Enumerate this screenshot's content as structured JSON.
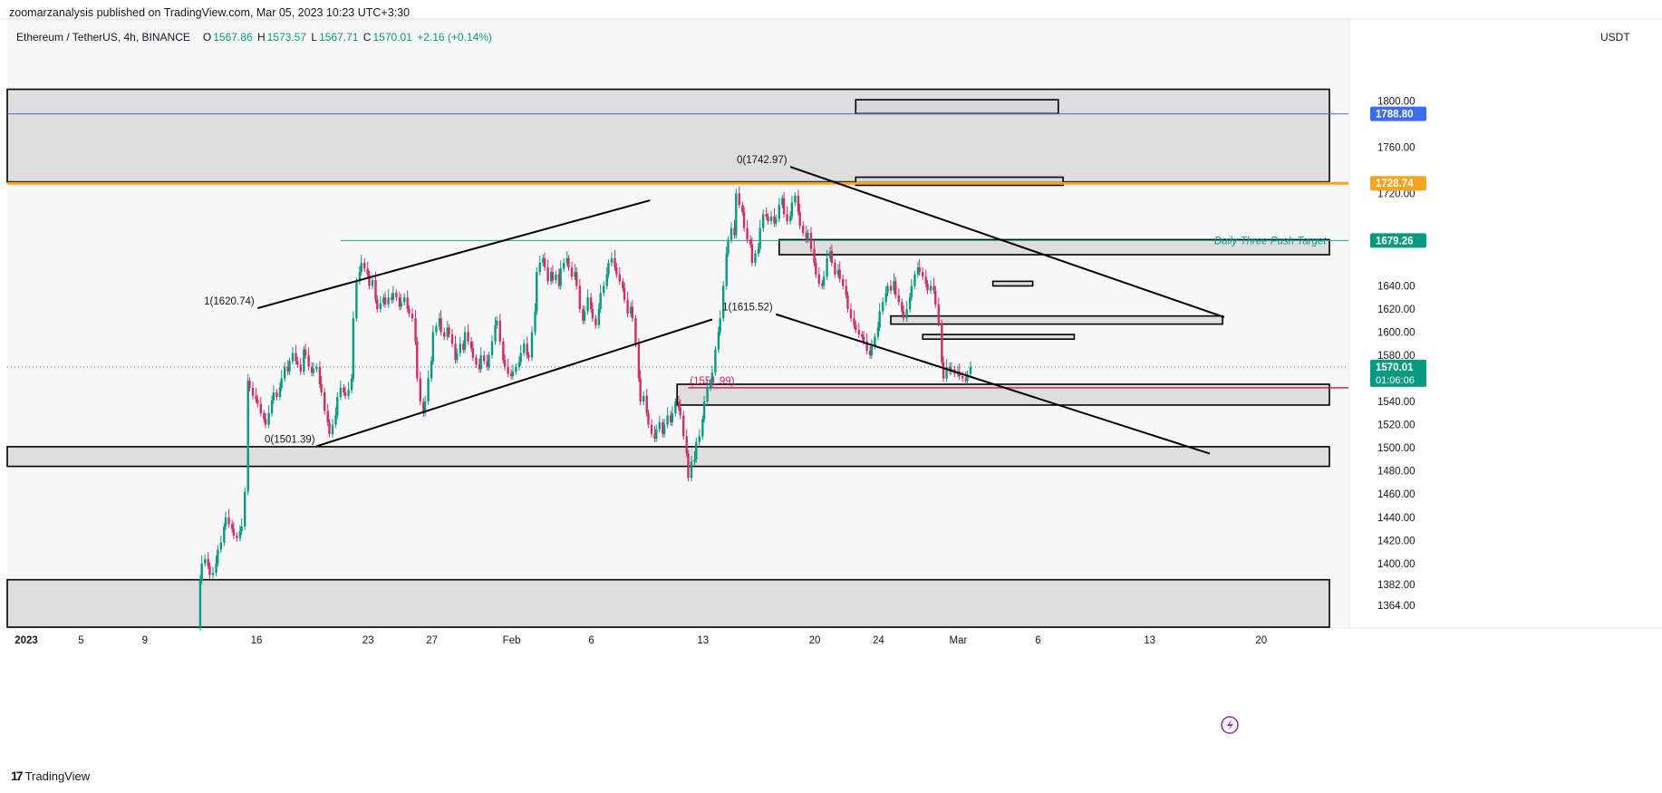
{
  "header": {
    "publisher_line": "zoomarzanalysis published on TradingView.com, Mar 05, 2023 10:23 UTC+3:30",
    "symbol": "Ethereum / TetherUS, 4h, BINANCE",
    "open_label": "O",
    "open": "1567.86",
    "high_label": "H",
    "high": "1573.57",
    "low_label": "L",
    "low": "1567.71",
    "close_label": "C",
    "close": "1570.01",
    "change": "+2.16 (+0.14%)",
    "currency": "USDT"
  },
  "footer": {
    "brand": "TradingView"
  },
  "colors": {
    "up": "#089981",
    "down": "#cc2e6a",
    "zone_fill": "#d6d6d6",
    "zone_border": "#000000",
    "orange_line": "#f7a521",
    "blue_line": "#3d6cf0",
    "teal_line": "#26a69a",
    "red_line": "#d61e5f",
    "price_label_bg": "#089981"
  },
  "chart_data": {
    "type": "candlestick",
    "symbol": "ETHUSDT",
    "timeframe": "4h",
    "ylim": [
      1345,
      1830
    ],
    "y_ticks": [
      1364,
      1382,
      1400,
      1420,
      1440,
      1460,
      1480,
      1500,
      1520,
      1540,
      1560,
      1580,
      1600,
      1620,
      1640,
      1660,
      1680,
      1700,
      1720,
      1740,
      1760,
      1780,
      1800
    ],
    "y_tick_labels_shown": [
      "1800.00",
      "1760.00",
      "1720.00",
      "1640.00",
      "1620.00",
      "1600.00",
      "1580.00",
      "1540.00",
      "1520.00",
      "1500.00",
      "1480.00",
      "1460.00",
      "1440.00",
      "1420.00",
      "1400.00",
      "1382.00",
      "1364.00"
    ],
    "x_ticks": [
      {
        "label": "2023",
        "day": 0
      },
      {
        "label": "5",
        "day": 4
      },
      {
        "label": "9",
        "day": 8
      },
      {
        "label": "16",
        "day": 15
      },
      {
        "label": "23",
        "day": 22
      },
      {
        "label": "27",
        "day": 26
      },
      {
        "label": "Feb",
        "day": 31
      },
      {
        "label": "6",
        "day": 36
      },
      {
        "label": "13",
        "day": 43
      },
      {
        "label": "20",
        "day": 50
      },
      {
        "label": "24",
        "day": 54
      },
      {
        "label": "Mar",
        "day": 59
      },
      {
        "label": "6",
        "day": 64
      },
      {
        "label": "13",
        "day": 71
      },
      {
        "label": "20",
        "day": 78
      }
    ],
    "price_labels": [
      {
        "value": 1788.8,
        "text": "1788.80",
        "color": "#3d6cf0"
      },
      {
        "value": 1728.74,
        "text": "1728.74",
        "color": "#f7a521"
      },
      {
        "value": 1679.26,
        "text": "1679.26",
        "color": "#089981"
      },
      {
        "value": 1570.01,
        "text": "1570.01",
        "sub": "01:06:06",
        "color": "#089981"
      }
    ],
    "hlines": [
      {
        "value": 1788.8,
        "color": "#3d6cf0",
        "width": 1
      },
      {
        "value": 1728.74,
        "color": "#f7a521",
        "width": 3
      },
      {
        "value": 1679.26,
        "color": "#26a69a",
        "width": 1,
        "from_day": 20.5
      },
      {
        "value": 1551.99,
        "color": "#d61e5f",
        "width": 1.5,
        "from_day": 42.3
      },
      {
        "value": 1570.01,
        "color": "#089981",
        "width": 1,
        "dotted": true
      }
    ],
    "zones": [
      {
        "from_day": -0.5,
        "to_day": 82.5,
        "top": 1810,
        "bottom": 1730
      },
      {
        "from_day": 52.8,
        "to_day": 65.5,
        "top": 1801,
        "bottom": 1789
      },
      {
        "from_day": 52.8,
        "to_day": 65.8,
        "top": 1734,
        "bottom": 1727
      },
      {
        "from_day": 48.0,
        "to_day": 82.5,
        "top": 1680,
        "bottom": 1667
      },
      {
        "from_day": 61.4,
        "to_day": 63.9,
        "top": 1644,
        "bottom": 1640
      },
      {
        "from_day": 55.0,
        "to_day": 75.8,
        "top": 1614,
        "bottom": 1607
      },
      {
        "from_day": 57.0,
        "to_day": 66.5,
        "top": 1598,
        "bottom": 1594
      },
      {
        "from_day": 41.6,
        "to_day": 82.5,
        "top": 1555,
        "bottom": 1537
      },
      {
        "from_day": -0.5,
        "to_day": 82.5,
        "top": 1501,
        "bottom": 1484
      },
      {
        "from_day": -0.5,
        "to_day": 82.5,
        "top": 1386,
        "bottom": 1345
      }
    ],
    "trendlines": [
      {
        "from": [
          15.3,
          1620.74
        ],
        "to": [
          39.9,
          1714
        ]
      },
      {
        "from": [
          19.0,
          1501.39
        ],
        "to": [
          43.8,
          1611
        ]
      },
      {
        "from": [
          48.7,
          1742.97
        ],
        "to": [
          75.9,
          1613
        ]
      },
      {
        "from": [
          47.8,
          1615.52
        ],
        "to": [
          75.0,
          1495
        ]
      }
    ],
    "annotations": [
      {
        "text": "1(1620.74)",
        "day": 15.1,
        "value": 1620.74,
        "anchor": "end",
        "color": "#131722"
      },
      {
        "text": "0(1501.39)",
        "day": 18.9,
        "value": 1501.39,
        "anchor": "end",
        "color": "#131722"
      },
      {
        "text": "0(1742.97)",
        "day": 48.5,
        "value": 1742.97,
        "anchor": "end",
        "color": "#131722"
      },
      {
        "text": "1(1615.52)",
        "day": 47.6,
        "value": 1615.52,
        "anchor": "end",
        "color": "#131722"
      },
      {
        "text": "(1551.99)",
        "day": 45.2,
        "value": 1551.99,
        "anchor": "end",
        "color": "#d61e5f"
      },
      {
        "text": "Daily Three Push Target",
        "day": 82.3,
        "value": 1679.26,
        "anchor": "end",
        "color": "#089981",
        "italic": true
      }
    ],
    "closes": [
      [
        11.5,
        1345
      ],
      [
        11.7,
        1385
      ],
      [
        11.8,
        1400
      ],
      [
        12.0,
        1404
      ],
      [
        12.2,
        1398
      ],
      [
        12.3,
        1390
      ],
      [
        12.5,
        1392
      ],
      [
        12.7,
        1400
      ],
      [
        12.8,
        1412
      ],
      [
        13.0,
        1418
      ],
      [
        13.2,
        1432
      ],
      [
        13.3,
        1440
      ],
      [
        13.5,
        1434
      ],
      [
        13.7,
        1430
      ],
      [
        13.8,
        1424
      ],
      [
        14.0,
        1422
      ],
      [
        14.2,
        1428
      ],
      [
        14.3,
        1432
      ],
      [
        14.5,
        1462
      ],
      [
        14.7,
        1558
      ],
      [
        14.8,
        1552
      ],
      [
        15.0,
        1545
      ],
      [
        15.2,
        1542
      ],
      [
        15.3,
        1538
      ],
      [
        15.5,
        1530
      ],
      [
        15.7,
        1525
      ],
      [
        15.8,
        1520
      ],
      [
        16.0,
        1530
      ],
      [
        16.2,
        1541
      ],
      [
        16.3,
        1548
      ],
      [
        16.5,
        1544
      ],
      [
        16.7,
        1552
      ],
      [
        16.8,
        1560
      ],
      [
        17.0,
        1570
      ],
      [
        17.2,
        1566
      ],
      [
        17.3,
        1575
      ],
      [
        17.5,
        1582
      ],
      [
        17.7,
        1575
      ],
      [
        17.8,
        1572
      ],
      [
        18.0,
        1566
      ],
      [
        18.2,
        1585
      ],
      [
        18.3,
        1580
      ],
      [
        18.5,
        1570
      ],
      [
        18.7,
        1565
      ],
      [
        18.8,
        1568
      ],
      [
        19.0,
        1570
      ],
      [
        19.2,
        1555
      ],
      [
        19.3,
        1548
      ],
      [
        19.5,
        1532
      ],
      [
        19.7,
        1522
      ],
      [
        19.8,
        1512
      ],
      [
        20.0,
        1520
      ],
      [
        20.2,
        1528
      ],
      [
        20.3,
        1544
      ],
      [
        20.5,
        1552
      ],
      [
        20.7,
        1548
      ],
      [
        20.8,
        1545
      ],
      [
        21.0,
        1550
      ],
      [
        21.2,
        1560
      ],
      [
        21.3,
        1612
      ],
      [
        21.5,
        1644
      ],
      [
        21.7,
        1652
      ],
      [
        21.8,
        1660
      ],
      [
        22.0,
        1655
      ],
      [
        22.2,
        1650
      ],
      [
        22.3,
        1640
      ],
      [
        22.5,
        1645
      ],
      [
        22.7,
        1628
      ],
      [
        22.8,
        1620
      ],
      [
        23.0,
        1625
      ],
      [
        23.2,
        1630
      ],
      [
        23.3,
        1624
      ],
      [
        23.5,
        1630
      ],
      [
        23.7,
        1628
      ],
      [
        23.8,
        1634
      ],
      [
        24.0,
        1630
      ],
      [
        24.2,
        1622
      ],
      [
        24.3,
        1626
      ],
      [
        24.5,
        1630
      ],
      [
        24.7,
        1620
      ],
      [
        24.8,
        1616
      ],
      [
        25.0,
        1612
      ],
      [
        25.2,
        1592
      ],
      [
        25.3,
        1560
      ],
      [
        25.5,
        1540
      ],
      [
        25.7,
        1530
      ],
      [
        25.8,
        1540
      ],
      [
        26.0,
        1560
      ],
      [
        26.2,
        1575
      ],
      [
        26.3,
        1600
      ],
      [
        26.5,
        1605
      ],
      [
        26.7,
        1612
      ],
      [
        26.8,
        1600
      ],
      [
        27.0,
        1596
      ],
      [
        27.2,
        1604
      ],
      [
        27.3,
        1598
      ],
      [
        27.5,
        1590
      ],
      [
        27.7,
        1576
      ],
      [
        27.8,
        1582
      ],
      [
        28.0,
        1590
      ],
      [
        28.2,
        1585
      ],
      [
        28.3,
        1600
      ],
      [
        28.5,
        1592
      ],
      [
        28.7,
        1586
      ],
      [
        28.8,
        1578
      ],
      [
        29.0,
        1572
      ],
      [
        29.2,
        1568
      ],
      [
        29.3,
        1580
      ],
      [
        29.5,
        1575
      ],
      [
        29.7,
        1570
      ],
      [
        29.8,
        1580
      ],
      [
        30.0,
        1592
      ],
      [
        30.2,
        1606
      ],
      [
        30.3,
        1610
      ],
      [
        30.5,
        1592
      ],
      [
        30.7,
        1576
      ],
      [
        30.8,
        1570
      ],
      [
        31.0,
        1564
      ],
      [
        31.2,
        1562
      ],
      [
        31.3,
        1566
      ],
      [
        31.5,
        1570
      ],
      [
        31.7,
        1574
      ],
      [
        31.8,
        1582
      ],
      [
        32.0,
        1590
      ],
      [
        32.2,
        1580
      ],
      [
        32.3,
        1578
      ],
      [
        32.5,
        1600
      ],
      [
        32.7,
        1618
      ],
      [
        32.8,
        1652
      ],
      [
        33.0,
        1660
      ],
      [
        33.2,
        1664
      ],
      [
        33.3,
        1656
      ],
      [
        33.5,
        1644
      ],
      [
        33.7,
        1652
      ],
      [
        33.8,
        1645
      ],
      [
        34.0,
        1650
      ],
      [
        34.2,
        1640
      ],
      [
        34.3,
        1655
      ],
      [
        34.5,
        1660
      ],
      [
        34.7,
        1664
      ],
      [
        34.8,
        1656
      ],
      [
        35.0,
        1648
      ],
      [
        35.2,
        1652
      ],
      [
        35.3,
        1640
      ],
      [
        35.5,
        1620
      ],
      [
        35.7,
        1610
      ],
      [
        35.8,
        1618
      ],
      [
        36.0,
        1630
      ],
      [
        36.2,
        1620
      ],
      [
        36.3,
        1612
      ],
      [
        36.5,
        1606
      ],
      [
        36.7,
        1620
      ],
      [
        36.8,
        1634
      ],
      [
        37.0,
        1640
      ],
      [
        37.2,
        1650
      ],
      [
        37.3,
        1660
      ],
      [
        37.5,
        1664
      ],
      [
        37.7,
        1656
      ],
      [
        37.8,
        1650
      ],
      [
        38.0,
        1644
      ],
      [
        38.2,
        1638
      ],
      [
        38.3,
        1628
      ],
      [
        38.5,
        1616
      ],
      [
        38.7,
        1622
      ],
      [
        38.8,
        1612
      ],
      [
        39.0,
        1590
      ],
      [
        39.2,
        1560
      ],
      [
        39.3,
        1540
      ],
      [
        39.5,
        1545
      ],
      [
        39.7,
        1530
      ],
      [
        39.8,
        1520
      ],
      [
        40.0,
        1512
      ],
      [
        40.2,
        1508
      ],
      [
        40.3,
        1516
      ],
      [
        40.5,
        1522
      ],
      [
        40.7,
        1512
      ],
      [
        40.8,
        1520
      ],
      [
        41.0,
        1528
      ],
      [
        41.2,
        1522
      ],
      [
        41.3,
        1530
      ],
      [
        41.5,
        1540
      ],
      [
        41.7,
        1535
      ],
      [
        41.8,
        1528
      ],
      [
        42.0,
        1510
      ],
      [
        42.2,
        1495
      ],
      [
        42.3,
        1474
      ],
      [
        42.5,
        1488
      ],
      [
        42.7,
        1490
      ],
      [
        42.8,
        1505
      ],
      [
        43.0,
        1510
      ],
      [
        43.2,
        1525
      ],
      [
        43.3,
        1540
      ],
      [
        43.5,
        1552
      ],
      [
        43.7,
        1556
      ],
      [
        43.8,
        1565
      ],
      [
        44.0,
        1585
      ],
      [
        44.2,
        1600
      ],
      [
        44.3,
        1612
      ],
      [
        44.5,
        1640
      ],
      [
        44.7,
        1668
      ],
      [
        44.8,
        1680
      ],
      [
        45.0,
        1690
      ],
      [
        45.2,
        1684
      ],
      [
        45.3,
        1720
      ],
      [
        45.5,
        1710
      ],
      [
        45.7,
        1704
      ],
      [
        45.8,
        1690
      ],
      [
        46.0,
        1680
      ],
      [
        46.2,
        1676
      ],
      [
        46.3,
        1660
      ],
      [
        46.5,
        1668
      ],
      [
        46.7,
        1672
      ],
      [
        46.8,
        1690
      ],
      [
        47.0,
        1702
      ],
      [
        47.2,
        1700
      ],
      [
        47.3,
        1696
      ],
      [
        47.5,
        1700
      ],
      [
        47.7,
        1694
      ],
      [
        47.8,
        1698
      ],
      [
        48.0,
        1710
      ],
      [
        48.2,
        1716
      ],
      [
        48.3,
        1702
      ],
      [
        48.5,
        1696
      ],
      [
        48.7,
        1700
      ],
      [
        48.8,
        1712
      ],
      [
        49.0,
        1718
      ],
      [
        49.2,
        1704
      ],
      [
        49.3,
        1692
      ],
      [
        49.5,
        1686
      ],
      [
        49.7,
        1680
      ],
      [
        49.8,
        1686
      ],
      [
        50.0,
        1672
      ],
      [
        50.2,
        1660
      ],
      [
        50.3,
        1650
      ],
      [
        50.5,
        1642
      ],
      [
        50.7,
        1640
      ],
      [
        50.8,
        1648
      ],
      [
        51.0,
        1664
      ],
      [
        51.2,
        1670
      ],
      [
        51.3,
        1660
      ],
      [
        51.5,
        1650
      ],
      [
        51.7,
        1654
      ],
      [
        51.8,
        1646
      ],
      [
        52.0,
        1640
      ],
      [
        52.2,
        1632
      ],
      [
        52.3,
        1620
      ],
      [
        52.5,
        1612
      ],
      [
        52.7,
        1606
      ],
      [
        52.8,
        1602
      ],
      [
        53.0,
        1598
      ],
      [
        53.2,
        1596
      ],
      [
        53.3,
        1592
      ],
      [
        53.5,
        1584
      ],
      [
        53.7,
        1580
      ],
      [
        53.8,
        1588
      ],
      [
        54.0,
        1596
      ],
      [
        54.2,
        1604
      ],
      [
        54.3,
        1618
      ],
      [
        54.5,
        1626
      ],
      [
        54.7,
        1634
      ],
      [
        54.8,
        1640
      ],
      [
        55.0,
        1636
      ],
      [
        55.2,
        1644
      ],
      [
        55.3,
        1632
      ],
      [
        55.5,
        1626
      ],
      [
        55.7,
        1618
      ],
      [
        55.8,
        1612
      ],
      [
        56.0,
        1620
      ],
      [
        56.2,
        1630
      ],
      [
        56.3,
        1640
      ],
      [
        56.5,
        1650
      ],
      [
        56.7,
        1656
      ],
      [
        56.8,
        1652
      ],
      [
        57.0,
        1648
      ],
      [
        57.2,
        1642
      ],
      [
        57.3,
        1636
      ],
      [
        57.5,
        1640
      ],
      [
        57.7,
        1636
      ],
      [
        57.8,
        1624
      ],
      [
        58.0,
        1608
      ],
      [
        58.2,
        1574
      ],
      [
        58.3,
        1560
      ],
      [
        58.5,
        1570
      ],
      [
        58.7,
        1566
      ],
      [
        58.8,
        1568
      ],
      [
        59.0,
        1564
      ],
      [
        59.2,
        1566
      ],
      [
        59.3,
        1562
      ],
      [
        59.5,
        1560
      ],
      [
        59.7,
        1558
      ],
      [
        59.8,
        1564
      ],
      [
        60.0,
        1570
      ]
    ]
  }
}
